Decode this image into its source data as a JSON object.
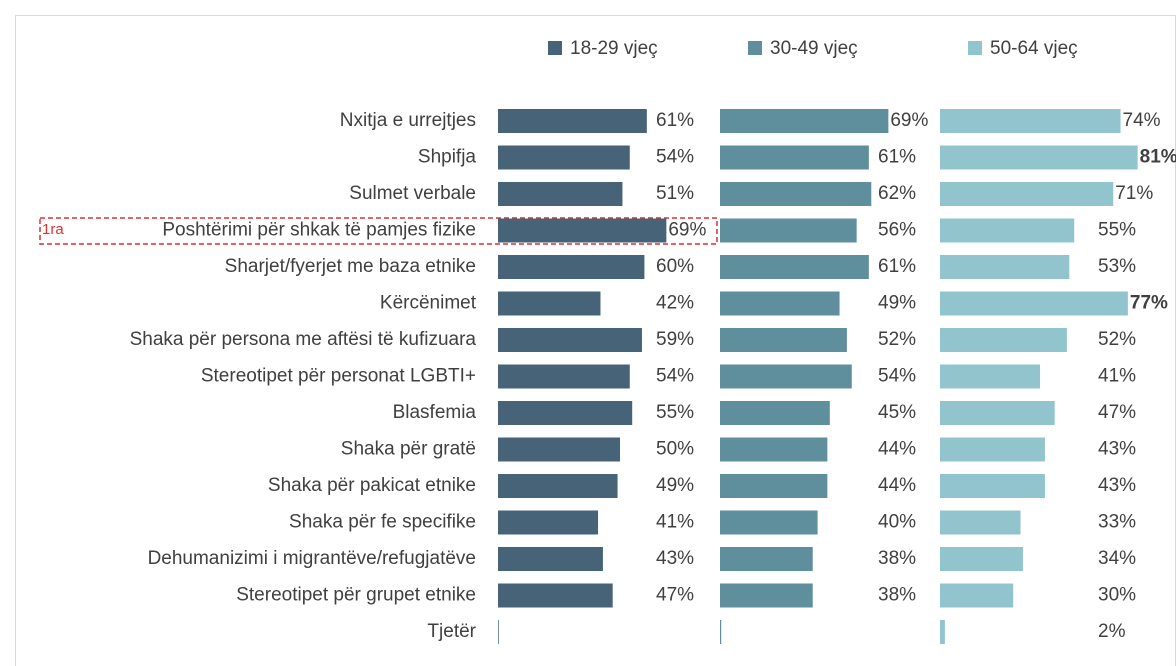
{
  "chart_data": {
    "type": "bar",
    "orientation": "horizontal",
    "annotation": "1ra",
    "categories": [
      "Nxitja e urrejtjes",
      "Shpifja",
      "Sulmet verbale",
      "Poshtërimi për shkak të pamjes fizike",
      "Sharjet/fyerjet me baza etnike",
      "Kërcënimet",
      "Shaka për persona me aftësi të kufizuara",
      "Stereotipet për personat LGBTI+",
      "Blasfemia",
      "Shaka për gratë",
      "Shaka për pakicat etnike",
      "Shaka për fe specifike",
      "Dehumanizimi i migrantëve/refugjatëve",
      "Stereotipet për grupet etnike",
      "Tjetër"
    ],
    "series": [
      {
        "name": "18-29 vjeç",
        "color": "#466378",
        "values": [
          61,
          54,
          51,
          69,
          60,
          42,
          59,
          54,
          55,
          50,
          49,
          41,
          43,
          47,
          0.3
        ],
        "value_labels": [
          "61%",
          "54%",
          "51%",
          "69%",
          "60%",
          "42%",
          "59%",
          "54%",
          "55%",
          "50%",
          "49%",
          "41%",
          "43%",
          "47%",
          null
        ]
      },
      {
        "name": "30-49 vjeç",
        "color": "#5f8e9c",
        "values": [
          69,
          61,
          62,
          56,
          61,
          49,
          52,
          54,
          45,
          44,
          44,
          40,
          38,
          38,
          0.5
        ],
        "value_labels": [
          "69%",
          "61%",
          "62%",
          "56%",
          "61%",
          "49%",
          "52%",
          "54%",
          "45%",
          "44%",
          "44%",
          "40%",
          "38%",
          "38%",
          null
        ]
      },
      {
        "name": "50-64 vjeç",
        "color": "#92c4cd",
        "values": [
          74,
          81,
          71,
          55,
          53,
          77,
          52,
          41,
          47,
          43,
          43,
          33,
          34,
          30,
          2
        ],
        "value_labels": [
          "74%",
          "81%",
          "71%",
          "55%",
          "53%",
          "77%",
          "52%",
          "41%",
          "47%",
          "43%",
          "43%",
          "33%",
          "34%",
          "30%",
          "2%"
        ],
        "bold": [
          false,
          true,
          false,
          false,
          false,
          true,
          false,
          false,
          false,
          false,
          false,
          false,
          false,
          false,
          false
        ]
      }
    ]
  }
}
